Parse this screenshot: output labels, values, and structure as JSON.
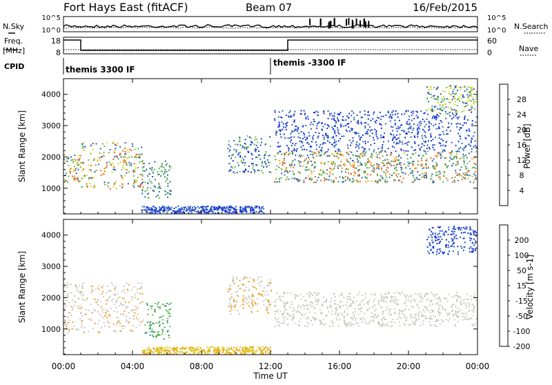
{
  "header": {
    "station": "Fort Hays East (fitACF)",
    "beam": "Beam 07",
    "date": "16/Feb/2015"
  },
  "top_panels": {
    "nsky_label": "N.Sky",
    "nsearch_label": "N.Search",
    "freq_label_1": "Freq.",
    "freq_label_2": "[MHz]",
    "nave_label": "Nave",
    "cpid_label": "CPID",
    "noise_ticks_left": [
      "10^5",
      "10^0"
    ],
    "noise_ticks_right": [
      "10^5",
      "10^0"
    ],
    "freq_ticks": [
      "18",
      "8"
    ],
    "nave_ticks": [
      "60",
      "0"
    ],
    "cpid_segments": [
      "themis 3300 IF",
      "themis -3300 IF"
    ]
  },
  "time_axis": {
    "label": "Time UT",
    "ticks": [
      "00:00",
      "04:00",
      "08:00",
      "12:00",
      "16:00",
      "20:00",
      "00:00"
    ]
  },
  "chart_data": [
    {
      "type": "heatmap",
      "name": "power",
      "ylabel": "Slant Range [km]",
      "yticks": [
        1000,
        2000,
        3000,
        4000
      ],
      "ylim": [
        180,
        4500
      ],
      "xlim": [
        0,
        24
      ],
      "colorbar": {
        "label": "Power [dB]",
        "ticks": [
          "4",
          "8",
          "12",
          "16",
          "20",
          "24",
          "28"
        ],
        "colors": [
          "#1030e0",
          "#2858b0",
          "#2e8a6a",
          "#5cb848",
          "#d8d020",
          "#f0a020",
          "#f06010",
          "#e01010"
        ]
      },
      "scatter_regions": [
        {
          "t": [
            0.0,
            1.0
          ],
          "r": [
            1200,
            2100
          ],
          "colors": [
            "#f06010",
            "#d8d020",
            "#5cb848",
            "#2858b0"
          ]
        },
        {
          "t": [
            1.0,
            4.6
          ],
          "r": [
            1000,
            2500
          ],
          "colors": [
            "#f06010",
            "#d8d020",
            "#5cb848",
            "#2858b0"
          ]
        },
        {
          "t": [
            4.5,
            6.2
          ],
          "r": [
            700,
            1900
          ],
          "colors": [
            "#5cb848",
            "#2858b0",
            "#2e8a6a"
          ]
        },
        {
          "t": [
            4.5,
            11.6
          ],
          "r": [
            180,
            450
          ],
          "colors": [
            "#2858b0",
            "#1030e0"
          ]
        },
        {
          "t": [
            9.5,
            12.0
          ],
          "r": [
            1500,
            2700
          ],
          "colors": [
            "#2858b0",
            "#1030e0",
            "#5cb848"
          ]
        },
        {
          "t": [
            12.2,
            24.0
          ],
          "r": [
            1200,
            2200
          ],
          "colors": [
            "#f06010",
            "#f0a020",
            "#5cb848",
            "#2e8a6a",
            "#2858b0"
          ]
        },
        {
          "t": [
            12.2,
            24.0
          ],
          "r": [
            2200,
            3500
          ],
          "colors": [
            "#2858b0",
            "#1030e0"
          ]
        },
        {
          "t": [
            21.0,
            24.0
          ],
          "r": [
            3400,
            4300
          ],
          "colors": [
            "#d8d020",
            "#5cb848",
            "#2858b0"
          ]
        }
      ]
    },
    {
      "type": "heatmap",
      "name": "velocity",
      "ylabel": "Slant Range [km]",
      "yticks": [
        1000,
        2000,
        3000,
        4000
      ],
      "ylim": [
        180,
        4500
      ],
      "xlim": [
        0,
        24
      ],
      "colorbar": {
        "label": "Velocity [m s-1]",
        "ticks": [
          "200",
          "100",
          "50",
          "15",
          "-15",
          "-50",
          "-100",
          "-200"
        ],
        "colors": [
          "#1030e0",
          "#2858b0",
          "#2e8a6a",
          "#5cb848",
          "#c8c8c0",
          "#f0a020",
          "#f06010",
          "#e01010"
        ]
      },
      "scatter_regions": [
        {
          "t": [
            0.0,
            4.6
          ],
          "r": [
            900,
            2500
          ],
          "colors": [
            "#c8c8c0",
            "#c8c8c0",
            "#c8c8c0",
            "#f0a020"
          ]
        },
        {
          "t": [
            4.7,
            6.2
          ],
          "r": [
            700,
            1900
          ],
          "colors": [
            "#5cb848",
            "#5cb848",
            "#2e8a6a"
          ]
        },
        {
          "t": [
            4.5,
            12.0
          ],
          "r": [
            180,
            450
          ],
          "colors": [
            "#f0a020",
            "#d8d020"
          ]
        },
        {
          "t": [
            9.5,
            12.0
          ],
          "r": [
            1500,
            2700
          ],
          "colors": [
            "#c8c8c0",
            "#f0a020"
          ]
        },
        {
          "t": [
            12.2,
            24.0
          ],
          "r": [
            1100,
            2200
          ],
          "colors": [
            "#c8c8c0"
          ]
        },
        {
          "t": [
            21.0,
            24.0
          ],
          "r": [
            3400,
            4300
          ],
          "colors": [
            "#1030e0",
            "#2858b0"
          ]
        }
      ]
    }
  ]
}
